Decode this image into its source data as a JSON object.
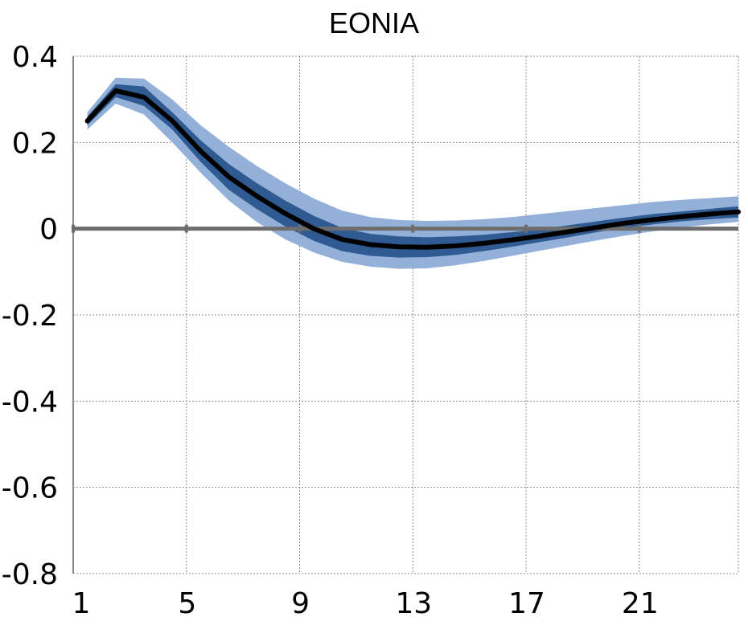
{
  "chart_data": {
    "type": "line",
    "title": "EONIA",
    "xlabel": "",
    "ylabel": "",
    "xlim": [
      1,
      24.5
    ],
    "ylim": [
      -0.8,
      0.4
    ],
    "x_ticks": [
      "1",
      "5",
      "9",
      "13",
      "17",
      "21"
    ],
    "y_ticks": [
      "0.4",
      "0.2",
      "0",
      "-0.2",
      "-0.4",
      "-0.6",
      "-0.8"
    ],
    "grid": true,
    "colors": {
      "outer_band": "#93b0d8",
      "inner_band": "#2f5b92",
      "median": "#000000",
      "zero_line": "#6d6d6d",
      "grid": "#8c8c8c"
    },
    "x": [
      1.5,
      2.5,
      3.5,
      4.5,
      5.5,
      6.5,
      7.5,
      8.5,
      9.5,
      10.5,
      11.5,
      12.5,
      13.5,
      14.5,
      15.5,
      16.5,
      17.5,
      18.5,
      19.5,
      20.5,
      21.5,
      22.5,
      23.5,
      24.5
    ],
    "series": [
      {
        "role": "median",
        "values": [
          0.25,
          0.32,
          0.305,
          0.25,
          0.18,
          0.12,
          0.075,
          0.035,
          0.0,
          -0.025,
          -0.037,
          -0.042,
          -0.043,
          -0.04,
          -0.034,
          -0.026,
          -0.017,
          -0.007,
          0.003,
          0.013,
          0.021,
          0.028,
          0.034,
          0.039
        ]
      },
      {
        "role": "band_inner",
        "lower": [
          0.24,
          0.305,
          0.285,
          0.23,
          0.155,
          0.09,
          0.045,
          0.005,
          -0.028,
          -0.052,
          -0.063,
          -0.067,
          -0.066,
          -0.061,
          -0.052,
          -0.042,
          -0.031,
          -0.02,
          -0.008,
          0.002,
          0.01,
          0.017,
          0.022,
          0.026
        ],
        "upper": [
          0.26,
          0.335,
          0.33,
          0.27,
          0.205,
          0.15,
          0.105,
          0.065,
          0.03,
          0.002,
          -0.012,
          -0.018,
          -0.02,
          -0.018,
          -0.014,
          -0.008,
          -0.001,
          0.008,
          0.017,
          0.026,
          0.034,
          0.04,
          0.046,
          0.052
        ]
      },
      {
        "role": "band_outer",
        "lower": [
          0.23,
          0.29,
          0.265,
          0.2,
          0.13,
          0.065,
          0.015,
          -0.025,
          -0.055,
          -0.077,
          -0.088,
          -0.093,
          -0.092,
          -0.085,
          -0.075,
          -0.063,
          -0.051,
          -0.039,
          -0.027,
          -0.016,
          -0.006,
          0.003,
          0.01,
          0.016
        ],
        "upper": [
          0.27,
          0.35,
          0.348,
          0.3,
          0.24,
          0.19,
          0.145,
          0.105,
          0.07,
          0.042,
          0.027,
          0.02,
          0.018,
          0.019,
          0.022,
          0.027,
          0.034,
          0.041,
          0.048,
          0.055,
          0.062,
          0.067,
          0.071,
          0.075
        ]
      }
    ]
  }
}
